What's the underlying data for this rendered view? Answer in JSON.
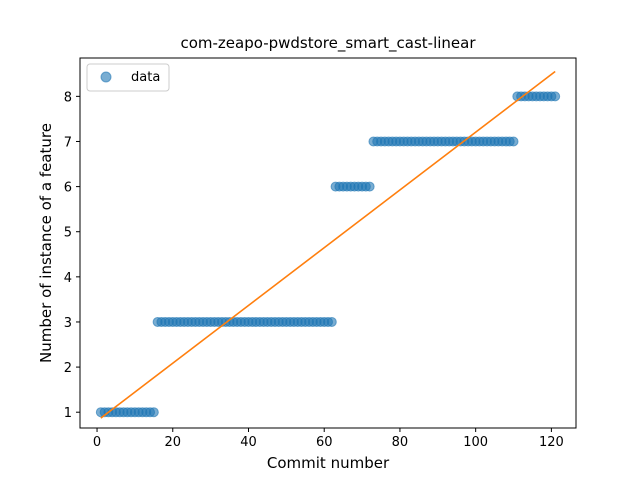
{
  "chart_data": {
    "type": "scatter",
    "title": "com-zeapo-pwdstore_smart_cast-linear",
    "xlabel": "Commit number",
    "ylabel": "Number of instance of a feature",
    "xlim": [
      -4.5,
      126.5
    ],
    "ylim": [
      0.65,
      8.85
    ],
    "xticks": [
      0,
      20,
      40,
      60,
      80,
      100,
      120
    ],
    "yticks": [
      1,
      2,
      3,
      4,
      5,
      6,
      7,
      8
    ],
    "legend": {
      "placement": "top-left",
      "entries": [
        "data"
      ]
    },
    "colors": {
      "points": "#1f77b4",
      "fit": "#ff7f0e"
    },
    "series": [
      {
        "name": "data",
        "kind": "points",
        "segments": [
          {
            "x_from": 1,
            "x_to": 15,
            "y": 1
          },
          {
            "x_from": 16,
            "x_to": 62,
            "y": 3
          },
          {
            "x_from": 63,
            "x_to": 72,
            "y": 6
          },
          {
            "x_from": 73,
            "x_to": 110,
            "y": 7
          },
          {
            "x_from": 111,
            "x_to": 121,
            "y": 8
          }
        ]
      },
      {
        "kind": "fit-line",
        "x": [
          1,
          121
        ],
        "y": [
          0.87,
          8.55
        ]
      }
    ]
  }
}
